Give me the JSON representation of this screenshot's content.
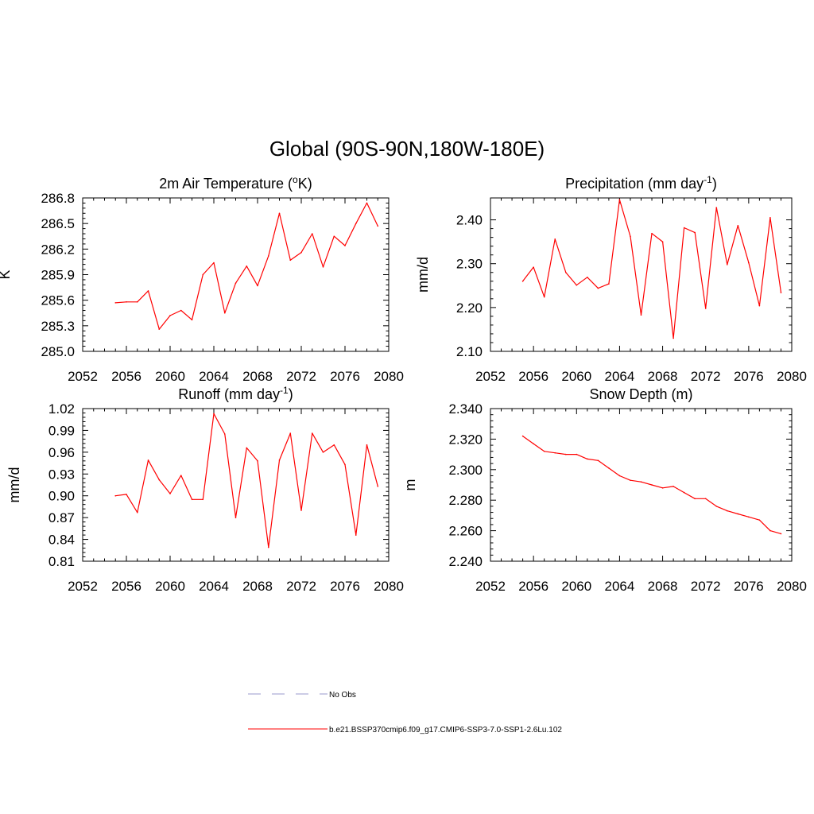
{
  "figure": {
    "title": "Global (90S-90N,180W-180E)",
    "series_color": "#ff0000",
    "obs_color": "#9999cc"
  },
  "legend": {
    "items": [
      {
        "label": "No Obs",
        "style": "dashed",
        "color": "#9999cc"
      },
      {
        "label": "b.e21.BSSP370cmip6.f09_g17.CMIP6-SSP3-7.0-SSP1-2.6Lu.102",
        "style": "solid",
        "color": "#ff0000"
      }
    ]
  },
  "chart_data": [
    {
      "type": "line",
      "title": "2m Air Temperature (",
      "title_sup": "o",
      "title_after": "K)",
      "ylabel": "K",
      "xlim": [
        2052,
        2080
      ],
      "ylim": [
        285.0,
        286.8
      ],
      "xticks": [
        2052,
        2056,
        2060,
        2064,
        2068,
        2072,
        2076,
        2080
      ],
      "yticks": [
        285.0,
        285.3,
        285.6,
        285.9,
        286.2,
        286.5,
        286.8
      ],
      "ytick_labels": [
        "285.0",
        "285.3",
        "285.6",
        "285.9",
        "286.2",
        "286.5",
        "286.8"
      ],
      "grid": false,
      "x": [
        2055,
        2056,
        2057,
        2058,
        2059,
        2060,
        2061,
        2062,
        2063,
        2064,
        2065,
        2066,
        2067,
        2068,
        2069,
        2070,
        2071,
        2072,
        2073,
        2074,
        2075,
        2076,
        2077,
        2078,
        2079
      ],
      "values": [
        285.57,
        285.58,
        285.58,
        285.71,
        285.26,
        285.42,
        285.48,
        285.37,
        285.9,
        286.04,
        285.45,
        285.8,
        286.0,
        285.77,
        286.12,
        286.62,
        286.07,
        286.16,
        286.38,
        285.99,
        286.35,
        286.24,
        286.5,
        286.74,
        286.47
      ]
    },
    {
      "type": "line",
      "title": "Precipitation (mm day",
      "title_sup": "-1",
      "title_after": ")",
      "ylabel": "mm/d",
      "xlim": [
        2052,
        2080
      ],
      "ylim": [
        2.1,
        2.45
      ],
      "xticks": [
        2052,
        2056,
        2060,
        2064,
        2068,
        2072,
        2076,
        2080
      ],
      "yticks": [
        2.1,
        2.2,
        2.3,
        2.4
      ],
      "ytick_labels": [
        "2.10",
        "2.20",
        "2.30",
        "2.40"
      ],
      "grid": false,
      "x": [
        2055,
        2056,
        2057,
        2058,
        2059,
        2060,
        2061,
        2062,
        2063,
        2064,
        2065,
        2066,
        2067,
        2068,
        2069,
        2070,
        2071,
        2072,
        2073,
        2074,
        2075,
        2076,
        2077,
        2078,
        2079
      ],
      "values": [
        2.26,
        2.292,
        2.224,
        2.356,
        2.28,
        2.251,
        2.269,
        2.244,
        2.254,
        2.446,
        2.362,
        2.183,
        2.369,
        2.35,
        2.13,
        2.382,
        2.371,
        2.198,
        2.428,
        2.298,
        2.387,
        2.302,
        2.204,
        2.405,
        2.234
      ]
    },
    {
      "type": "line",
      "title": "Runoff (mm day",
      "title_sup": "-1",
      "title_after": ")",
      "ylabel": "mm/d",
      "xlim": [
        2052,
        2080
      ],
      "ylim": [
        0.81,
        1.02
      ],
      "xticks": [
        2052,
        2056,
        2060,
        2064,
        2068,
        2072,
        2076,
        2080
      ],
      "yticks": [
        0.81,
        0.84,
        0.87,
        0.9,
        0.93,
        0.96,
        0.99,
        1.02
      ],
      "ytick_labels": [
        "0.81",
        "0.84",
        "0.87",
        "0.90",
        "0.93",
        "0.96",
        "0.99",
        "1.02"
      ],
      "grid": false,
      "x": [
        2055,
        2056,
        2057,
        2058,
        2059,
        2060,
        2061,
        2062,
        2063,
        2064,
        2065,
        2066,
        2067,
        2068,
        2069,
        2070,
        2071,
        2072,
        2073,
        2074,
        2075,
        2076,
        2077,
        2078,
        2079
      ],
      "values": [
        0.9,
        0.902,
        0.877,
        0.949,
        0.922,
        0.903,
        0.928,
        0.895,
        0.895,
        1.013,
        0.985,
        0.87,
        0.966,
        0.948,
        0.829,
        0.949,
        0.986,
        0.88,
        0.986,
        0.96,
        0.97,
        0.943,
        0.846,
        0.97,
        0.913
      ]
    },
    {
      "type": "line",
      "title": "Snow Depth (m)",
      "title_sup": "",
      "title_after": "",
      "ylabel": "m",
      "xlim": [
        2052,
        2080
      ],
      "ylim": [
        2.24,
        2.34
      ],
      "xticks": [
        2052,
        2056,
        2060,
        2064,
        2068,
        2072,
        2076,
        2080
      ],
      "yticks": [
        2.24,
        2.26,
        2.28,
        2.3,
        2.32,
        2.34
      ],
      "ytick_labels": [
        "2.240",
        "2.260",
        "2.280",
        "2.300",
        "2.320",
        "2.340"
      ],
      "grid": false,
      "x": [
        2055,
        2056,
        2057,
        2058,
        2059,
        2060,
        2061,
        2062,
        2063,
        2064,
        2065,
        2066,
        2067,
        2068,
        2069,
        2070,
        2071,
        2072,
        2073,
        2074,
        2075,
        2076,
        2077,
        2078,
        2079
      ],
      "values": [
        2.322,
        2.317,
        2.312,
        2.311,
        2.31,
        2.31,
        2.307,
        2.306,
        2.301,
        2.296,
        2.293,
        2.292,
        2.29,
        2.288,
        2.289,
        2.285,
        2.281,
        2.281,
        2.276,
        2.273,
        2.271,
        2.269,
        2.267,
        2.26,
        2.258
      ]
    }
  ]
}
